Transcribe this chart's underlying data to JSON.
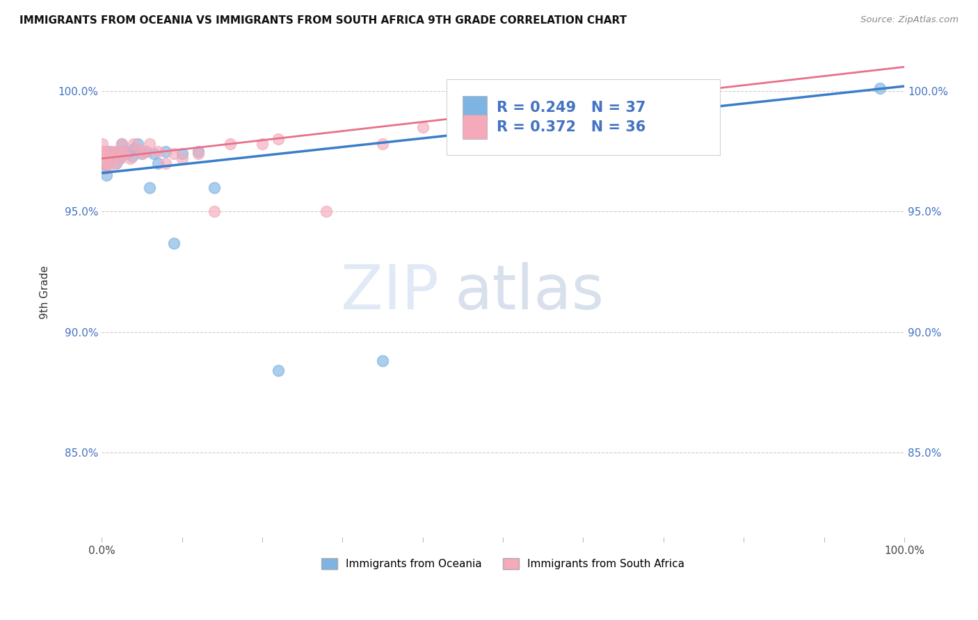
{
  "title": "IMMIGRANTS FROM OCEANIA VS IMMIGRANTS FROM SOUTH AFRICA 9TH GRADE CORRELATION CHART",
  "source": "Source: ZipAtlas.com",
  "ylabel": "9th Grade",
  "ytick_labels": [
    "85.0%",
    "90.0%",
    "95.0%",
    "100.0%"
  ],
  "ytick_values": [
    0.85,
    0.9,
    0.95,
    1.0
  ],
  "xlim": [
    0.0,
    1.0
  ],
  "ylim": [
    0.815,
    1.018
  ],
  "legend_label1": "Immigrants from Oceania",
  "legend_label2": "Immigrants from South Africa",
  "R_oceania": 0.249,
  "N_oceania": 37,
  "R_southafrica": 0.372,
  "N_southafrica": 36,
  "color_oceania": "#7EB4E2",
  "color_southafrica": "#F4AABB",
  "line_color_oceania": "#3A7DC9",
  "line_color_southafrica": "#E8708A",
  "watermark_zip": "ZIP",
  "watermark_atlas": "atlas",
  "oceania_x": [
    0.001,
    0.002,
    0.003,
    0.004,
    0.005,
    0.006,
    0.007,
    0.008,
    0.01,
    0.012,
    0.013,
    0.015,
    0.017,
    0.018,
    0.02,
    0.022,
    0.025,
    0.028,
    0.03,
    0.035,
    0.038,
    0.04,
    0.045,
    0.05,
    0.055,
    0.06,
    0.065,
    0.07,
    0.08,
    0.09,
    0.1,
    0.12,
    0.14,
    0.22,
    0.35,
    0.65,
    0.97
  ],
  "oceania_y": [
    0.972,
    0.97,
    0.972,
    0.968,
    0.97,
    0.965,
    0.975,
    0.972,
    0.975,
    0.974,
    0.972,
    0.973,
    0.974,
    0.97,
    0.975,
    0.972,
    0.978,
    0.975,
    0.974,
    0.975,
    0.973,
    0.976,
    0.978,
    0.974,
    0.975,
    0.96,
    0.974,
    0.97,
    0.975,
    0.937,
    0.974,
    0.975,
    0.96,
    0.884,
    0.888,
    1.001,
    1.001
  ],
  "southafrica_x": [
    0.001,
    0.002,
    0.003,
    0.004,
    0.005,
    0.006,
    0.007,
    0.008,
    0.01,
    0.012,
    0.015,
    0.017,
    0.02,
    0.022,
    0.025,
    0.028,
    0.03,
    0.035,
    0.04,
    0.045,
    0.05,
    0.055,
    0.06,
    0.07,
    0.08,
    0.09,
    0.1,
    0.12,
    0.14,
    0.16,
    0.2,
    0.22,
    0.28,
    0.35,
    0.4,
    0.65
  ],
  "southafrica_y": [
    0.978,
    0.975,
    0.975,
    0.973,
    0.972,
    0.97,
    0.97,
    0.968,
    0.975,
    0.972,
    0.975,
    0.97,
    0.975,
    0.972,
    0.978,
    0.974,
    0.975,
    0.972,
    0.978,
    0.976,
    0.974,
    0.975,
    0.978,
    0.975,
    0.97,
    0.974,
    0.972,
    0.974,
    0.95,
    0.978,
    0.978,
    0.98,
    0.95,
    0.978,
    0.985,
    1.001
  ]
}
